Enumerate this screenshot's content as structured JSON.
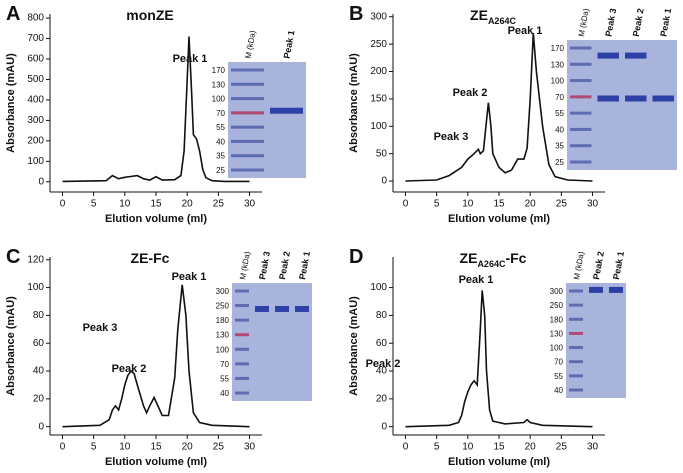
{
  "chart_data": [
    {
      "type": "line",
      "panel": "A",
      "title": "monZE",
      "x_label": "Elution volume (ml)",
      "y_label": "Absorbance (mAU)",
      "xlim": [
        -2,
        32
      ],
      "xticks": [
        0,
        5,
        10,
        15,
        20,
        25,
        30
      ],
      "ylim": [
        -50,
        820
      ],
      "yticks": [
        0,
        100,
        200,
        300,
        400,
        500,
        600,
        700,
        800
      ],
      "color": "#111111",
      "x": [
        0,
        7,
        8,
        9,
        10,
        12,
        13,
        14,
        15,
        16,
        18,
        19,
        19.5,
        20,
        20.3,
        20.7,
        21,
        21.5,
        22,
        22.5,
        23,
        24,
        26,
        30
      ],
      "values": [
        2,
        5,
        30,
        15,
        22,
        30,
        15,
        8,
        25,
        8,
        10,
        30,
        150,
        500,
        710,
        450,
        230,
        210,
        150,
        60,
        20,
        5,
        2,
        2
      ],
      "annotations": [
        "Peak 1"
      ],
      "gel": {
        "lanes": [
          "M (kDa)",
          "Peak 1"
        ],
        "markers": [
          170,
          130,
          100,
          70,
          55,
          40,
          35,
          25
        ]
      }
    },
    {
      "type": "line",
      "panel": "B",
      "title": "ZE",
      "title_subscript": "A264C",
      "x_label": "Elution volume (ml)",
      "y_label": "Absorbance (mAU)",
      "xlim": [
        -2,
        32
      ],
      "xticks": [
        0,
        5,
        10,
        15,
        20,
        25,
        30
      ],
      "ylim": [
        -20,
        305
      ],
      "yticks": [
        0,
        50,
        100,
        150,
        200,
        250,
        300
      ],
      "color": "#111111",
      "x": [
        0,
        5,
        7,
        9,
        10,
        11,
        11.7,
        12,
        12.5,
        13,
        13.3,
        13.7,
        14,
        15,
        16,
        17,
        18,
        19,
        19.5,
        20,
        20.5,
        21,
        21.5,
        22,
        23,
        24,
        26,
        30
      ],
      "values": [
        0,
        2,
        10,
        25,
        40,
        50,
        58,
        50,
        55,
        110,
        143,
        100,
        50,
        25,
        15,
        20,
        40,
        40,
        60,
        150,
        270,
        200,
        150,
        100,
        30,
        8,
        2,
        0
      ],
      "annotations": [
        "Peak 3",
        "Peak 2",
        "Peak 1"
      ],
      "gel": {
        "lanes": [
          "M (kDa)",
          "Peak 3",
          "Peak 2",
          "Peak 1"
        ],
        "markers": [
          170,
          130,
          100,
          70,
          55,
          40,
          35,
          25
        ]
      }
    },
    {
      "type": "line",
      "panel": "C",
      "title": "ZE-Fc",
      "x_label": "Elution volume (ml)",
      "y_label": "Absorbance (mAU)",
      "xlim": [
        -2,
        32
      ],
      "xticks": [
        0,
        5,
        10,
        15,
        20,
        25,
        30
      ],
      "ylim": [
        -6,
        122
      ],
      "yticks": [
        0,
        20,
        40,
        60,
        80,
        100,
        120
      ],
      "color": "#111111",
      "x": [
        0,
        6,
        7.5,
        8,
        8.5,
        9,
        9.5,
        10,
        10.5,
        11,
        11.5,
        12,
        13,
        13.5,
        14,
        14.7,
        15.3,
        16,
        17,
        18,
        18.5,
        19.2,
        19.8,
        20.3,
        21,
        22,
        24,
        30
      ],
      "values": [
        0,
        1,
        5,
        12,
        15,
        12,
        20,
        30,
        37,
        40,
        38,
        30,
        15,
        10,
        15,
        21,
        15,
        8,
        8,
        35,
        70,
        102,
        80,
        40,
        10,
        3,
        1,
        0
      ],
      "annotations": [
        "Peak 3",
        "Peak 2",
        "Peak 1"
      ],
      "gel": {
        "lanes": [
          "M (kDa)",
          "Peak 3",
          "Peak 2",
          "Peak 1"
        ],
        "markers": [
          300,
          250,
          180,
          130,
          100,
          70,
          55,
          40
        ]
      }
    },
    {
      "type": "line",
      "panel": "D",
      "title": "ZE",
      "title_subscript": "A264C",
      "title_suffix": "-Fc",
      "x_label": "Elution volume (ml)",
      "y_label": "Absorbance (mAU)",
      "xlim": [
        -2,
        32
      ],
      "xticks": [
        0,
        5,
        10,
        15,
        20,
        25,
        30
      ],
      "ylim": [
        -6,
        122
      ],
      "yticks": [
        0,
        20,
        40,
        60,
        80,
        100
      ],
      "color": "#111111",
      "x": [
        0,
        7,
        8.5,
        9,
        9.5,
        10,
        10.5,
        11,
        11.5,
        12,
        12.3,
        12.7,
        13,
        13.5,
        14,
        16,
        19,
        19.5,
        20,
        22,
        30
      ],
      "values": [
        0,
        1,
        3,
        8,
        18,
        25,
        30,
        33,
        30,
        70,
        98,
        80,
        40,
        12,
        4,
        2,
        3,
        5,
        3,
        1,
        0
      ],
      "annotations": [
        "Peak 2",
        "Peak 1"
      ],
      "gel": {
        "lanes": [
          "M (kDa)",
          "Peak 2",
          "Peak 1"
        ],
        "markers": [
          300,
          250,
          180,
          130,
          100,
          70,
          55,
          40
        ]
      }
    }
  ]
}
